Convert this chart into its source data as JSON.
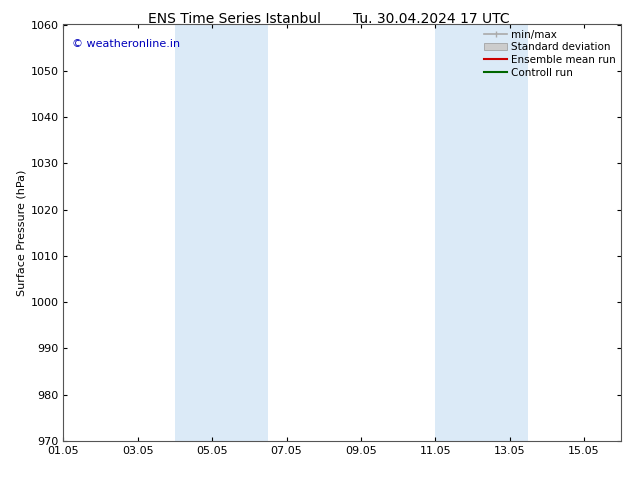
{
  "title_left": "ENS Time Series Istanbul",
  "title_right": "Tu. 30.04.2024 17 UTC",
  "ylabel": "Surface Pressure (hPa)",
  "ylim": [
    970,
    1060
  ],
  "yticks": [
    970,
    980,
    990,
    1000,
    1010,
    1020,
    1030,
    1040,
    1050,
    1060
  ],
  "xlim_start": 0.0,
  "xlim_end": 15.0,
  "xtick_labels": [
    "01.05",
    "03.05",
    "05.05",
    "07.05",
    "09.05",
    "11.05",
    "13.05",
    "15.05"
  ],
  "xtick_positions": [
    0,
    2,
    4,
    6,
    8,
    10,
    12,
    14
  ],
  "shaded_bands": [
    {
      "xmin": 3.0,
      "xmax": 5.5,
      "color": "#dbeaf7"
    },
    {
      "xmin": 10.0,
      "xmax": 12.5,
      "color": "#dbeaf7"
    }
  ],
  "watermark": "© weatheronline.in",
  "watermark_color": "#0000bb",
  "legend_entries": [
    {
      "label": "min/max",
      "color": "#aaaaaa",
      "lw": 1.2,
      "style": "minmax"
    },
    {
      "label": "Standard deviation",
      "color": "#cccccc",
      "lw": 5,
      "style": "box"
    },
    {
      "label": "Ensemble mean run",
      "color": "#cc0000",
      "lw": 1.5,
      "style": "line"
    },
    {
      "label": "Controll run",
      "color": "#006600",
      "lw": 1.5,
      "style": "line"
    }
  ],
  "bg_color": "#ffffff",
  "spine_color": "#555555",
  "title_fontsize": 10,
  "axis_label_fontsize": 8,
  "tick_fontsize": 8,
  "legend_fontsize": 7.5,
  "watermark_fontsize": 8
}
